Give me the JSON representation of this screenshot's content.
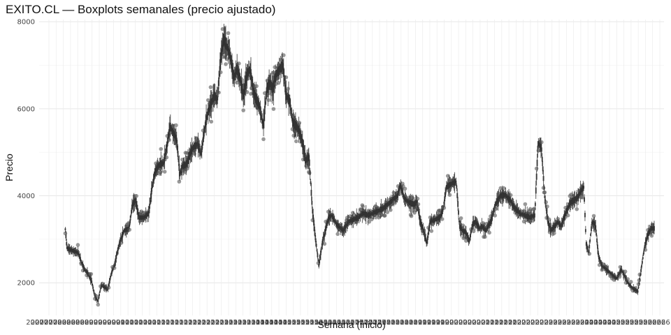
{
  "chart_data": {
    "type": "box",
    "title": "EXITO.CL — Boxplots semanales (precio ajustado)",
    "xlabel": "Semana (inicio)",
    "ylabel": "Precio",
    "ylim": [
      1250,
      8050
    ],
    "y_ticks": [
      2000,
      4000,
      6000,
      8000
    ],
    "x_range_year": [
      2007.0,
      2026.1
    ],
    "x_tick_note": "dense weekly labels (years 2007–2026, overlapping)",
    "grid": true,
    "box_color": "#333333",
    "outlier_color": "#555555",
    "price_path": [
      [
        2007.8,
        3230
      ],
      [
        2007.85,
        2800
      ],
      [
        2007.95,
        2760
      ],
      [
        2008.1,
        2720
      ],
      [
        2008.2,
        2680
      ],
      [
        2008.3,
        2460
      ],
      [
        2008.4,
        2300
      ],
      [
        2008.5,
        2200
      ],
      [
        2008.6,
        2050
      ],
      [
        2008.7,
        1700
      ],
      [
        2008.8,
        1580
      ],
      [
        2008.9,
        1950
      ],
      [
        2009.0,
        1900
      ],
      [
        2009.1,
        1850
      ],
      [
        2009.2,
        2200
      ],
      [
        2009.3,
        2400
      ],
      [
        2009.45,
        2900
      ],
      [
        2009.6,
        3200
      ],
      [
        2009.75,
        3250
      ],
      [
        2009.85,
        3800
      ],
      [
        2009.95,
        3900
      ],
      [
        2010.05,
        3500
      ],
      [
        2010.2,
        3500
      ],
      [
        2010.35,
        3600
      ],
      [
        2010.45,
        4200
      ],
      [
        2010.55,
        4550
      ],
      [
        2010.65,
        4700
      ],
      [
        2010.8,
        4750
      ],
      [
        2010.9,
        5100
      ],
      [
        2011.0,
        5600
      ],
      [
        2011.1,
        5450
      ],
      [
        2011.2,
        5300
      ],
      [
        2011.3,
        4500
      ],
      [
        2011.4,
        4700
      ],
      [
        2011.5,
        4700
      ],
      [
        2011.6,
        4950
      ],
      [
        2011.7,
        5100
      ],
      [
        2011.85,
        5200
      ],
      [
        2011.95,
        4950
      ],
      [
        2012.05,
        5500
      ],
      [
        2012.15,
        5900
      ],
      [
        2012.25,
        6100
      ],
      [
        2012.35,
        6300
      ],
      [
        2012.45,
        6200
      ],
      [
        2012.55,
        7200
      ],
      [
        2012.65,
        7600
      ],
      [
        2012.75,
        7400
      ],
      [
        2012.85,
        7200
      ],
      [
        2012.95,
        6700
      ],
      [
        2013.05,
        6900
      ],
      [
        2013.15,
        6650
      ],
      [
        2013.25,
        6300
      ],
      [
        2013.35,
        6800
      ],
      [
        2013.45,
        6900
      ],
      [
        2013.55,
        6400
      ],
      [
        2013.65,
        6200
      ],
      [
        2013.75,
        6000
      ],
      [
        2013.85,
        5600
      ],
      [
        2013.95,
        6400
      ],
      [
        2014.05,
        6600
      ],
      [
        2014.15,
        6450
      ],
      [
        2014.25,
        6800
      ],
      [
        2014.35,
        6900
      ],
      [
        2014.45,
        7000
      ],
      [
        2014.55,
        6300
      ],
      [
        2014.65,
        6200
      ],
      [
        2014.75,
        5700
      ],
      [
        2014.85,
        5600
      ],
      [
        2014.95,
        5500
      ],
      [
        2015.05,
        5200
      ],
      [
        2015.15,
        4800
      ],
      [
        2015.25,
        4900
      ],
      [
        2015.3,
        4300
      ],
      [
        2015.35,
        3700
      ],
      [
        2015.45,
        3000
      ],
      [
        2015.55,
        2400
      ],
      [
        2015.65,
        2900
      ],
      [
        2015.75,
        3200
      ],
      [
        2015.85,
        3500
      ],
      [
        2015.95,
        3550
      ],
      [
        2016.05,
        3400
      ],
      [
        2016.15,
        3300
      ],
      [
        2016.3,
        3200
      ],
      [
        2016.45,
        3400
      ],
      [
        2016.6,
        3450
      ],
      [
        2016.75,
        3500
      ],
      [
        2016.9,
        3600
      ],
      [
        2017.05,
        3550
      ],
      [
        2017.2,
        3600
      ],
      [
        2017.35,
        3650
      ],
      [
        2017.5,
        3700
      ],
      [
        2017.65,
        3800
      ],
      [
        2017.8,
        3900
      ],
      [
        2017.95,
        4000
      ],
      [
        2018.05,
        4250
      ],
      [
        2018.15,
        3950
      ],
      [
        2018.3,
        3850
      ],
      [
        2018.45,
        3800
      ],
      [
        2018.55,
        3850
      ],
      [
        2018.65,
        3400
      ],
      [
        2018.75,
        3200
      ],
      [
        2018.85,
        2900
      ],
      [
        2018.95,
        3400
      ],
      [
        2019.1,
        3450
      ],
      [
        2019.25,
        3500
      ],
      [
        2019.35,
        3700
      ],
      [
        2019.45,
        4200
      ],
      [
        2019.55,
        4250
      ],
      [
        2019.65,
        4300
      ],
      [
        2019.75,
        4320
      ],
      [
        2019.85,
        3300
      ],
      [
        2019.95,
        3200
      ],
      [
        2020.05,
        3150
      ],
      [
        2020.15,
        2950
      ],
      [
        2020.25,
        3350
      ],
      [
        2020.35,
        3400
      ],
      [
        2020.45,
        3250
      ],
      [
        2020.55,
        3300
      ],
      [
        2020.65,
        3200
      ],
      [
        2020.8,
        3400
      ],
      [
        2020.95,
        3800
      ],
      [
        2021.1,
        4000
      ],
      [
        2021.25,
        4020
      ],
      [
        2021.4,
        3900
      ],
      [
        2021.55,
        3700
      ],
      [
        2021.7,
        3600
      ],
      [
        2021.85,
        3550
      ],
      [
        2022.0,
        3500
      ],
      [
        2022.15,
        3550
      ],
      [
        2022.25,
        5200
      ],
      [
        2022.35,
        5150
      ],
      [
        2022.45,
        4000
      ],
      [
        2022.55,
        3400
      ],
      [
        2022.65,
        3200
      ],
      [
        2022.75,
        3300
      ],
      [
        2022.85,
        3400
      ],
      [
        2022.95,
        3300
      ],
      [
        2023.05,
        3500
      ],
      [
        2023.15,
        3700
      ],
      [
        2023.25,
        3850
      ],
      [
        2023.35,
        3900
      ],
      [
        2023.45,
        3950
      ],
      [
        2023.55,
        4100
      ],
      [
        2023.65,
        4200
      ],
      [
        2023.72,
        2900
      ],
      [
        2023.8,
        2700
      ],
      [
        2023.9,
        3400
      ],
      [
        2024.0,
        3350
      ],
      [
        2024.1,
        2600
      ],
      [
        2024.2,
        2400
      ],
      [
        2024.35,
        2300
      ],
      [
        2024.5,
        2200
      ],
      [
        2024.65,
        2100
      ],
      [
        2024.8,
        2300
      ],
      [
        2024.9,
        2150
      ],
      [
        2025.0,
        2000
      ],
      [
        2025.1,
        1900
      ],
      [
        2025.2,
        1850
      ],
      [
        2025.3,
        1800
      ],
      [
        2025.4,
        2300
      ],
      [
        2025.5,
        2800
      ],
      [
        2025.6,
        3100
      ],
      [
        2025.7,
        3250
      ],
      [
        2025.8,
        3250
      ]
    ]
  }
}
